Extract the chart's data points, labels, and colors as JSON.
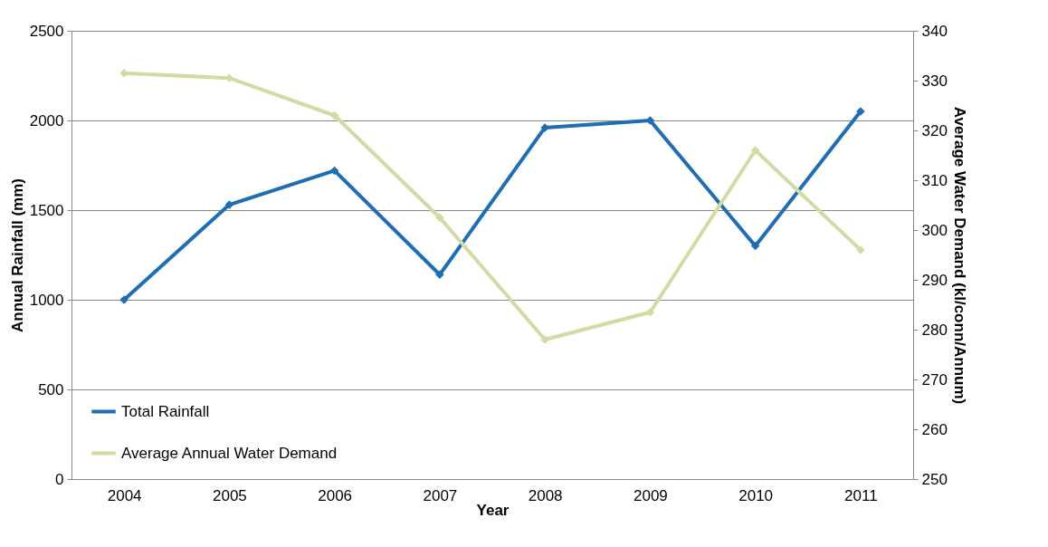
{
  "chart_data": {
    "type": "line",
    "xlabel": "Year",
    "ylabel": "Annual Rainfall (mm)",
    "y2label": "Average Water Demand (kl/conn/Annum)",
    "categories": [
      "2004",
      "2005",
      "2006",
      "2007",
      "2008",
      "2009",
      "2010",
      "2011"
    ],
    "series": [
      {
        "name": "Total Rainfall",
        "color": "#1f6db4",
        "values": [
          1000,
          1530,
          1720,
          1140,
          1960,
          2000,
          1300,
          2050
        ]
      },
      {
        "name": "Average Annual Water Demand",
        "color": "#d5d9a3",
        "axis": "y2",
        "values": [
          331.5,
          330.5,
          323,
          302.5,
          278,
          283.5,
          316,
          296
        ]
      }
    ],
    "ylim": [
      0,
      2500
    ],
    "yticks": [
      0,
      500,
      1000,
      1500,
      2000,
      2500
    ],
    "y2lim": [
      250,
      340
    ],
    "y2ticks": [
      250,
      260,
      270,
      280,
      290,
      300,
      310,
      320,
      330,
      340
    ],
    "grid": "y",
    "legend": "bottom left",
    "marker": "diamond",
    "line_style": "solid"
  }
}
